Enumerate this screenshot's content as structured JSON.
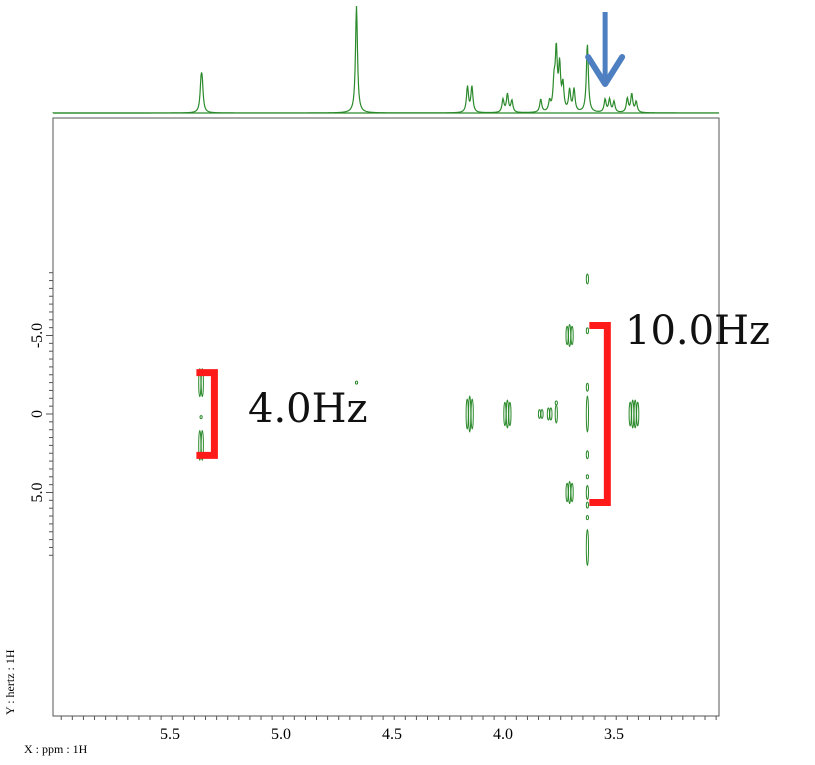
{
  "chart_data": {
    "type": "heatmap",
    "description_type": "2D J-resolved NMR spectrum with 1D projection",
    "xlabel": "X : ppm : 1H",
    "ylabel": "Y : hertz : 1H",
    "x_ticks": [
      "5.5",
      "5.0",
      "4.5",
      "4.0",
      "3.5"
    ],
    "x_tick_values": [
      5.5,
      5.0,
      4.5,
      4.0,
      3.5
    ],
    "y_ticks": [
      "-5.0",
      "0",
      "5.0"
    ],
    "y_tick_values": [
      -5.0,
      0,
      5.0
    ],
    "xlim": [
      5.99,
      3.0
    ],
    "ylim": [
      -9.3,
      9.3
    ],
    "x_reversed": true,
    "projection_peaks": [
      {
        "ppm": 5.36,
        "height": 0.24
      },
      {
        "ppm": 5.355,
        "height": 0.22
      },
      {
        "ppm": 4.66,
        "height": 1.0
      },
      {
        "ppm": 4.16,
        "height": 0.24
      },
      {
        "ppm": 4.14,
        "height": 0.24
      },
      {
        "ppm": 4.0,
        "height": 0.12
      },
      {
        "ppm": 3.98,
        "height": 0.17
      },
      {
        "ppm": 3.96,
        "height": 0.11
      },
      {
        "ppm": 3.83,
        "height": 0.12
      },
      {
        "ppm": 3.79,
        "height": 0.09
      },
      {
        "ppm": 3.77,
        "height": 0.25
      },
      {
        "ppm": 3.76,
        "height": 0.55
      },
      {
        "ppm": 3.745,
        "height": 0.41
      },
      {
        "ppm": 3.73,
        "height": 0.24
      },
      {
        "ppm": 3.7,
        "height": 0.2
      },
      {
        "ppm": 3.68,
        "height": 0.21
      },
      {
        "ppm": 3.62,
        "height": 0.64
      },
      {
        "ppm": 3.54,
        "height": 0.12
      },
      {
        "ppm": 3.52,
        "height": 0.12
      },
      {
        "ppm": 3.5,
        "height": 0.1
      },
      {
        "ppm": 3.44,
        "height": 0.13
      },
      {
        "ppm": 3.42,
        "height": 0.17
      },
      {
        "ppm": 3.4,
        "height": 0.1
      }
    ],
    "contours": [
      {
        "ppm": 5.36,
        "hz": -2.0,
        "w": 4,
        "h": 32
      },
      {
        "ppm": 5.36,
        "hz": 2.0,
        "w": 4,
        "h": 34
      },
      {
        "ppm": 5.36,
        "hz": 0.2,
        "w": 2,
        "h": 3
      },
      {
        "ppm": 4.66,
        "hz": -2.0,
        "w": 3,
        "h": 3
      },
      {
        "ppm": 4.15,
        "hz": 0.0,
        "w": 7,
        "h": 36
      },
      {
        "ppm": 3.98,
        "hz": 0.0,
        "w": 7,
        "h": 28
      },
      {
        "ppm": 3.83,
        "hz": 0.0,
        "w": 4,
        "h": 10
      },
      {
        "ppm": 3.79,
        "hz": 0.0,
        "w": 4,
        "h": 14
      },
      {
        "ppm": 3.76,
        "hz": -0.7,
        "w": 2,
        "h": 4
      },
      {
        "ppm": 3.76,
        "hz": 0.0,
        "w": 3,
        "h": 18
      },
      {
        "ppm": 3.7,
        "hz": -5.0,
        "w": 7,
        "h": 22
      },
      {
        "ppm": 3.7,
        "hz": 5.0,
        "w": 7,
        "h": 22
      },
      {
        "ppm": 3.62,
        "hz": -8.6,
        "w": 2,
        "h": 10
      },
      {
        "ppm": 3.62,
        "hz": -5.3,
        "w": 2,
        "h": 6
      },
      {
        "ppm": 3.62,
        "hz": -1.7,
        "w": 2,
        "h": 8
      },
      {
        "ppm": 3.62,
        "hz": 0.0,
        "w": 3,
        "h": 36
      },
      {
        "ppm": 3.62,
        "hz": 2.6,
        "w": 2,
        "h": 8
      },
      {
        "ppm": 3.62,
        "hz": 4.0,
        "w": 2,
        "h": 4
      },
      {
        "ppm": 3.62,
        "hz": 5.0,
        "w": 3,
        "h": 14
      },
      {
        "ppm": 3.62,
        "hz": 5.8,
        "w": 2,
        "h": 6
      },
      {
        "ppm": 3.62,
        "hz": 6.6,
        "w": 2,
        "h": 4
      },
      {
        "ppm": 3.62,
        "hz": 8.5,
        "w": 3,
        "h": 36
      },
      {
        "ppm": 3.41,
        "hz": 0.0,
        "w": 9,
        "h": 30
      }
    ],
    "annotations": [
      {
        "text": "4.0Hz",
        "ppm": 5.3,
        "hz_from": -2.0,
        "hz_to": 2.0
      },
      {
        "text": "10.0Hz",
        "ppm": 3.53,
        "hz_from": -5.0,
        "hz_to": 5.0
      }
    ],
    "arrow_ppm": 3.54,
    "grid": false
  },
  "colors": {
    "spectrum": "#2b8a2b",
    "bracket": "#ff1a1a",
    "arrow": "#4d7fc1",
    "axis": "#555555"
  }
}
